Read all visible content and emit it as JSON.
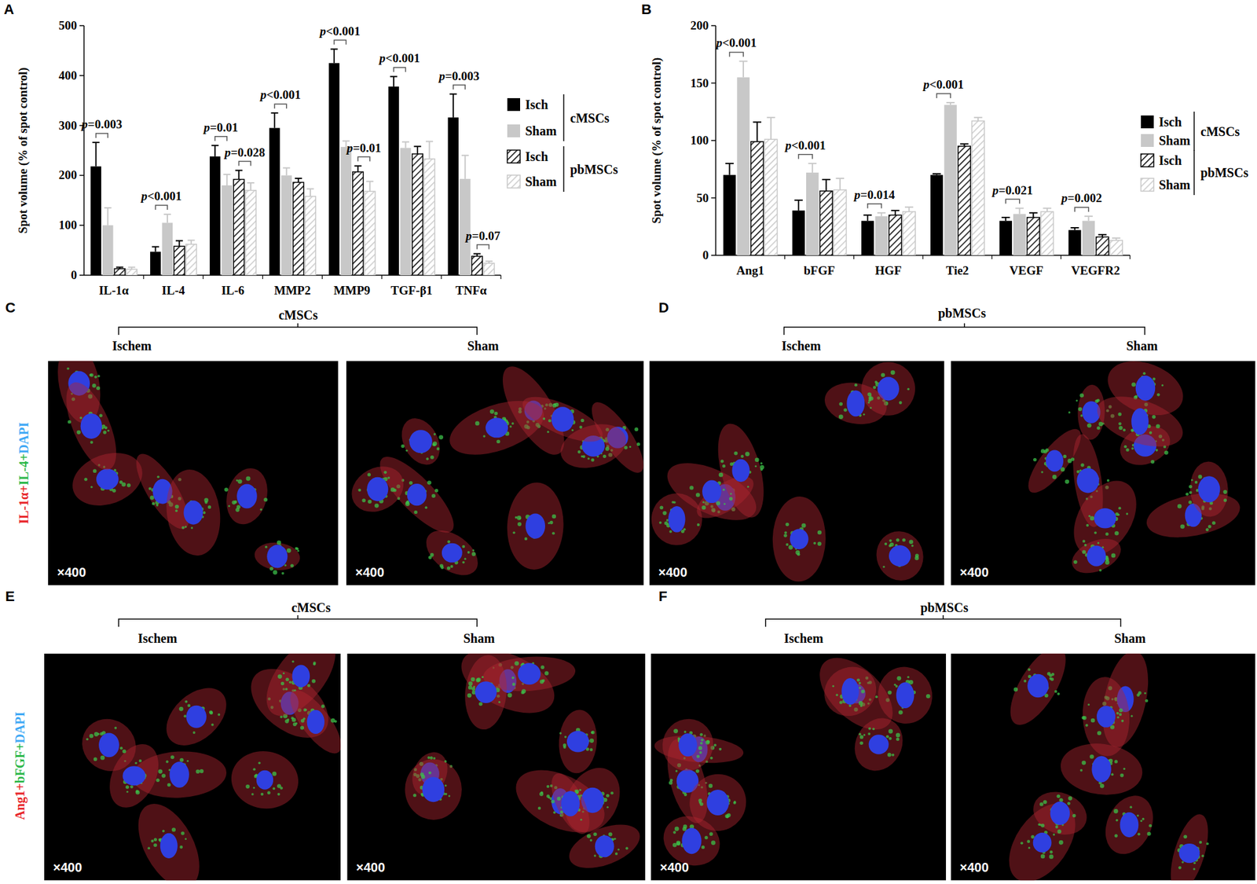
{
  "chart_data": [
    {
      "type": "bar",
      "panel": "A",
      "y_label": "Spot volume (% of spot control)",
      "categories": [
        "IL-1α",
        "IL-4",
        "IL-6",
        "MMP2",
        "MMP9",
        "TGF-β1",
        "TNFα"
      ],
      "series": [
        {
          "name": "Isch",
          "group": "cMSCs",
          "color": "#000000",
          "values": [
            218,
            47,
            238,
            295,
            425,
            378,
            316
          ],
          "errors": [
            48,
            10,
            22,
            30,
            28,
            20,
            47
          ]
        },
        {
          "name": "Sham",
          "group": "cMSCs",
          "color": "#c8c8c8",
          "values": [
            100,
            105,
            180,
            200,
            257,
            255,
            193
          ],
          "errors": [
            35,
            17,
            22,
            15,
            12,
            12,
            47
          ]
        },
        {
          "name": "Isch",
          "group": "pbMSCs",
          "color": "#000000",
          "values": [
            13,
            58,
            192,
            186,
            207,
            243,
            38
          ],
          "errors": [
            3,
            11,
            18,
            8,
            12,
            15,
            5
          ]
        },
        {
          "name": "Sham",
          "group": "pbMSCs",
          "color": "#c8c8c8",
          "values": [
            12,
            62,
            170,
            158,
            168,
            233,
            24
          ],
          "errors": [
            4,
            8,
            15,
            15,
            20,
            35,
            4
          ]
        }
      ],
      "ylim": [
        0,
        500
      ],
      "yticks": [
        0,
        100,
        200,
        300,
        400,
        500
      ],
      "grid": false,
      "annotations": [
        {
          "text": "p=0.003",
          "category": 0,
          "bars": [
            0,
            1
          ]
        },
        {
          "text": "p<0.001",
          "category": 1,
          "bars": [
            0,
            1
          ]
        },
        {
          "text": "p=0.01",
          "category": 2,
          "bars": [
            0,
            1
          ]
        },
        {
          "text": "p=0.028",
          "category": 2,
          "bars": [
            2,
            3
          ]
        },
        {
          "text": "p<0.001",
          "category": 3,
          "bars": [
            0,
            1
          ]
        },
        {
          "text": "p<0.001",
          "category": 4,
          "bars": [
            0,
            1
          ]
        },
        {
          "text": "p=0.01",
          "category": 4,
          "bars": [
            2,
            3
          ]
        },
        {
          "text": "p<0.001",
          "category": 5,
          "bars": [
            0,
            1
          ]
        },
        {
          "text": "p=0.003",
          "category": 6,
          "bars": [
            0,
            1
          ]
        },
        {
          "text": "p=0.07",
          "category": 6,
          "bars": [
            2,
            3
          ]
        }
      ]
    },
    {
      "type": "bar",
      "panel": "B",
      "y_label": "Spot volume (% of spot control)",
      "categories": [
        "Ang1",
        "bFGF",
        "HGF",
        "Tie2",
        "VEGF",
        "VEGFR2"
      ],
      "series": [
        {
          "name": "Isch",
          "group": "cMSCs",
          "color": "#000000",
          "values": [
            70,
            39,
            30,
            70,
            30,
            22
          ],
          "errors": [
            10,
            9,
            5,
            1,
            3,
            2
          ]
        },
        {
          "name": "Sham",
          "group": "cMSCs",
          "color": "#c8c8c8",
          "values": [
            155,
            72,
            34,
            131,
            36,
            30
          ],
          "errors": [
            14,
            8,
            3,
            2,
            5,
            4
          ]
        },
        {
          "name": "Isch",
          "group": "pbMSCs",
          "color": "#000000",
          "values": [
            99,
            56,
            35,
            95,
            33,
            16
          ],
          "errors": [
            17,
            10,
            4,
            2,
            4,
            2
          ]
        },
        {
          "name": "Sham",
          "group": "pbMSCs",
          "color": "#c8c8c8",
          "values": [
            101,
            57,
            38,
            117,
            38,
            13
          ],
          "errors": [
            19,
            10,
            4,
            3,
            3,
            2
          ]
        }
      ],
      "ylim": [
        0,
        200
      ],
      "yticks": [
        0,
        50,
        100,
        150,
        200
      ],
      "grid": false,
      "annotations": [
        {
          "text": "p<0.001",
          "category": 0,
          "bars": [
            0,
            1
          ]
        },
        {
          "text": "p<0.001",
          "category": 1,
          "bars": [
            0,
            1
          ]
        },
        {
          "text": "p=0.014",
          "category": 2,
          "bars": [
            0,
            1
          ]
        },
        {
          "text": "p<0.001",
          "category": 3,
          "bars": [
            0,
            1
          ]
        },
        {
          "text": "p=0.021",
          "category": 4,
          "bars": [
            0,
            1
          ]
        },
        {
          "text": "p=0.002",
          "category": 5,
          "bars": [
            0,
            1
          ]
        }
      ]
    }
  ],
  "image_panels": [
    {
      "label": "C",
      "group": "cMSCs",
      "stain": [
        {
          "text": "IL-1α+",
          "color": "#e8262a"
        },
        {
          "text": "IL-4+",
          "color": "#2db84a"
        },
        {
          "text": "DAPI",
          "color": "#3fa9f5"
        }
      ],
      "images": [
        {
          "condition": "Ischem",
          "magnification": "×400"
        },
        {
          "condition": "Sham",
          "magnification": "×400"
        }
      ]
    },
    {
      "label": "D",
      "group": "pbMSCs",
      "stain": [],
      "images": [
        {
          "condition": "Ischem",
          "magnification": "×400"
        },
        {
          "condition": "Sham",
          "magnification": "×400"
        }
      ]
    },
    {
      "label": "E",
      "group": "cMSCs",
      "stain": [
        {
          "text": "Ang1+",
          "color": "#e8262a"
        },
        {
          "text": "bFGF+",
          "color": "#2db84a"
        },
        {
          "text": "DAPI",
          "color": "#3fa9f5"
        }
      ],
      "images": [
        {
          "condition": "Ischem",
          "magnification": "×400"
        },
        {
          "condition": "Sham",
          "magnification": "×400"
        }
      ]
    },
    {
      "label": "F",
      "group": "pbMSCs",
      "stain": [],
      "images": [
        {
          "condition": "Ischem",
          "magnification": "×400"
        },
        {
          "condition": "Sham",
          "magnification": "×400"
        }
      ]
    }
  ]
}
